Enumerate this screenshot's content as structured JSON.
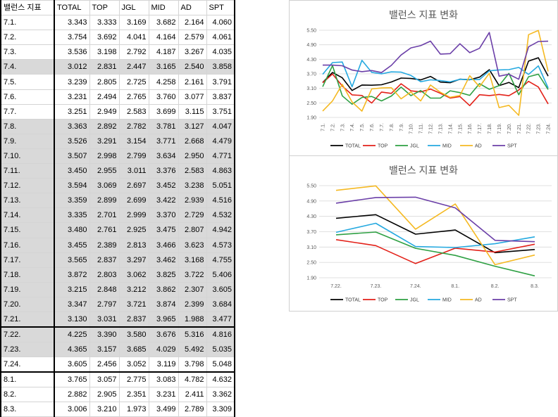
{
  "table": {
    "headers": [
      "밸런스 지표",
      "TOTAL",
      "TOP",
      "JGL",
      "MID",
      "AD",
      "SPT"
    ],
    "rows": [
      [
        "7.1.",
        "3.343",
        "3.333",
        "3.169",
        "3.682",
        "2.164",
        "4.060"
      ],
      [
        "7.2.",
        "3.754",
        "3.692",
        "4.041",
        "4.164",
        "2.579",
        "4.061"
      ],
      [
        "7.3.",
        "3.536",
        "3.198",
        "2.792",
        "4.187",
        "3.267",
        "4.035"
      ],
      [
        "7.4.",
        "3.012",
        "2.831",
        "2.447",
        "3.165",
        "2.540",
        "3.858"
      ],
      [
        "7.5.",
        "3.239",
        "2.805",
        "2.725",
        "4.258",
        "2.161",
        "3.791"
      ],
      [
        "7.6.",
        "3.231",
        "2.494",
        "2.765",
        "3.760",
        "3.077",
        "3.837"
      ],
      [
        "7.7.",
        "3.251",
        "2.949",
        "2.583",
        "3.699",
        "3.115",
        "3.751"
      ],
      [
        "7.8.",
        "3.363",
        "2.892",
        "2.782",
        "3.781",
        "3.127",
        "4.047"
      ],
      [
        "7.9.",
        "3.526",
        "3.291",
        "3.154",
        "3.771",
        "2.668",
        "4.479"
      ],
      [
        "7.10.",
        "3.507",
        "2.998",
        "2.799",
        "3.634",
        "2.950",
        "4.771"
      ],
      [
        "7.11.",
        "3.450",
        "2.955",
        "3.011",
        "3.376",
        "2.583",
        "4.863"
      ],
      [
        "7.12.",
        "3.594",
        "3.069",
        "2.697",
        "3.452",
        "3.238",
        "5.051"
      ],
      [
        "7.13.",
        "3.359",
        "2.899",
        "2.699",
        "3.422",
        "2.939",
        "4.516"
      ],
      [
        "7.14.",
        "3.335",
        "2.701",
        "2.999",
        "3.370",
        "2.729",
        "4.532"
      ],
      [
        "7.15.",
        "3.480",
        "2.761",
        "2.925",
        "3.475",
        "2.807",
        "4.942"
      ],
      [
        "7.16.",
        "3.455",
        "2.389",
        "2.813",
        "3.466",
        "3.623",
        "4.573"
      ],
      [
        "7.17.",
        "3.565",
        "2.837",
        "3.297",
        "3.462",
        "3.168",
        "4.755"
      ],
      [
        "7.18.",
        "3.872",
        "2.803",
        "3.062",
        "3.825",
        "3.722",
        "5.406"
      ],
      [
        "7.19.",
        "3.215",
        "2.848",
        "3.212",
        "3.862",
        "2.307",
        "3.605"
      ],
      [
        "7.20.",
        "3.347",
        "2.797",
        "3.721",
        "3.874",
        "2.399",
        "3.684"
      ],
      [
        "7.21.",
        "3.130",
        "3.031",
        "2.837",
        "3.965",
        "1.988",
        "3.477"
      ],
      [
        "7.22.",
        "4.225",
        "3.390",
        "3.580",
        "3.676",
        "5.316",
        "4.816"
      ],
      [
        "7.23.",
        "4.365",
        "3.157",
        "3.685",
        "4.029",
        "5.492",
        "5.035"
      ],
      [
        "7.24.",
        "3.605",
        "2.456",
        "3.052",
        "3.119",
        "3.798",
        "5.048"
      ],
      [
        "8.1.",
        "3.765",
        "3.057",
        "2.775",
        "3.083",
        "4.782",
        "4.632"
      ],
      [
        "8.2.",
        "2.882",
        "2.905",
        "2.351",
        "3.231",
        "2.411",
        "3.362"
      ],
      [
        "8.3.",
        "3.006",
        "3.210",
        "1.973",
        "3.499",
        "2.789",
        "3.309"
      ]
    ]
  },
  "chart_data": [
    {
      "type": "line",
      "title": "밸런스 지표 변화",
      "ylim": [
        1.9,
        5.5
      ],
      "yticks": [
        "1.90",
        "2.50",
        "3.10",
        "3.70",
        "4.30",
        "4.90",
        "5.50"
      ],
      "x": [
        "7.1.",
        "7.2.",
        "7.3.",
        "7.4.",
        "7.5.",
        "7.6.",
        "7.7.",
        "7.8.",
        "7.9.",
        "7.10.",
        "7.11.",
        "7.12.",
        "7.13.",
        "7.14.",
        "7.15.",
        "7.16.",
        "7.17.",
        "7.18.",
        "7.19.",
        "7.20.",
        "7.21.",
        "7.22.",
        "7.23.",
        "7.24."
      ],
      "legend_position": "bottom",
      "series": [
        {
          "name": "TOTAL",
          "color": "#000000",
          "values": [
            3.343,
            3.754,
            3.536,
            3.012,
            3.239,
            3.231,
            3.251,
            3.363,
            3.526,
            3.507,
            3.45,
            3.594,
            3.359,
            3.335,
            3.48,
            3.455,
            3.565,
            3.872,
            3.215,
            3.347,
            3.13,
            4.225,
            4.365,
            3.605
          ]
        },
        {
          "name": "TOP",
          "color": "#e32119",
          "values": [
            3.333,
            3.692,
            3.198,
            2.831,
            2.805,
            2.494,
            2.949,
            2.892,
            3.291,
            2.998,
            2.955,
            3.069,
            2.899,
            2.701,
            2.761,
            2.389,
            2.837,
            2.803,
            2.848,
            2.797,
            3.031,
            3.39,
            3.157,
            2.456
          ]
        },
        {
          "name": "JGL",
          "color": "#2ea043",
          "values": [
            3.169,
            4.041,
            2.792,
            2.447,
            2.725,
            2.765,
            2.583,
            2.782,
            3.154,
            2.799,
            3.011,
            2.697,
            2.699,
            2.999,
            2.925,
            2.813,
            3.297,
            3.062,
            3.212,
            3.721,
            2.837,
            3.58,
            3.685,
            3.052
          ]
        },
        {
          "name": "MID",
          "color": "#25a9e0",
          "values": [
            3.682,
            4.164,
            4.187,
            3.165,
            4.258,
            3.76,
            3.699,
            3.781,
            3.771,
            3.634,
            3.376,
            3.452,
            3.422,
            3.37,
            3.475,
            3.466,
            3.462,
            3.825,
            3.862,
            3.874,
            3.965,
            3.676,
            4.029,
            3.119
          ]
        },
        {
          "name": "AD",
          "color": "#f5b922",
          "values": [
            2.164,
            2.579,
            3.267,
            2.54,
            2.161,
            3.077,
            3.115,
            3.127,
            2.668,
            2.95,
            2.583,
            3.238,
            2.939,
            2.729,
            2.807,
            3.623,
            3.168,
            3.722,
            2.307,
            2.399,
            1.988,
            5.316,
            5.492,
            3.798
          ]
        },
        {
          "name": "SPT",
          "color": "#6b3fa8",
          "values": [
            4.06,
            4.061,
            4.035,
            3.858,
            3.791,
            3.837,
            3.751,
            4.047,
            4.479,
            4.771,
            4.863,
            5.051,
            4.516,
            4.532,
            4.942,
            4.573,
            4.755,
            5.406,
            3.605,
            3.684,
            3.477,
            4.816,
            5.035,
            5.048
          ]
        }
      ]
    },
    {
      "type": "line",
      "title": "밸런스 지표 변화",
      "ylim": [
        1.9,
        5.5
      ],
      "yticks": [
        "1.90",
        "2.50",
        "3.10",
        "3.70",
        "4.30",
        "4.90",
        "5.50"
      ],
      "x": [
        "7.22.",
        "7.23.",
        "7.24.",
        "8.1.",
        "8.2.",
        "8.3."
      ],
      "legend_position": "bottom",
      "series": [
        {
          "name": "TOTAL",
          "color": "#000000",
          "values": [
            4.225,
            4.365,
            3.605,
            3.765,
            2.882,
            3.006
          ]
        },
        {
          "name": "TOP",
          "color": "#e32119",
          "values": [
            3.39,
            3.157,
            2.456,
            3.057,
            2.905,
            3.21
          ]
        },
        {
          "name": "JGL",
          "color": "#2ea043",
          "values": [
            3.58,
            3.685,
            3.052,
            2.775,
            2.351,
            1.973
          ]
        },
        {
          "name": "MID",
          "color": "#25a9e0",
          "values": [
            3.676,
            4.029,
            3.119,
            3.083,
            3.231,
            3.499
          ]
        },
        {
          "name": "AD",
          "color": "#f5b922",
          "values": [
            5.316,
            5.492,
            3.798,
            4.782,
            2.411,
            2.789
          ]
        },
        {
          "name": "SPT",
          "color": "#6b3fa8",
          "values": [
            4.816,
            5.035,
            5.048,
            4.632,
            3.362,
            3.309
          ]
        }
      ]
    }
  ]
}
